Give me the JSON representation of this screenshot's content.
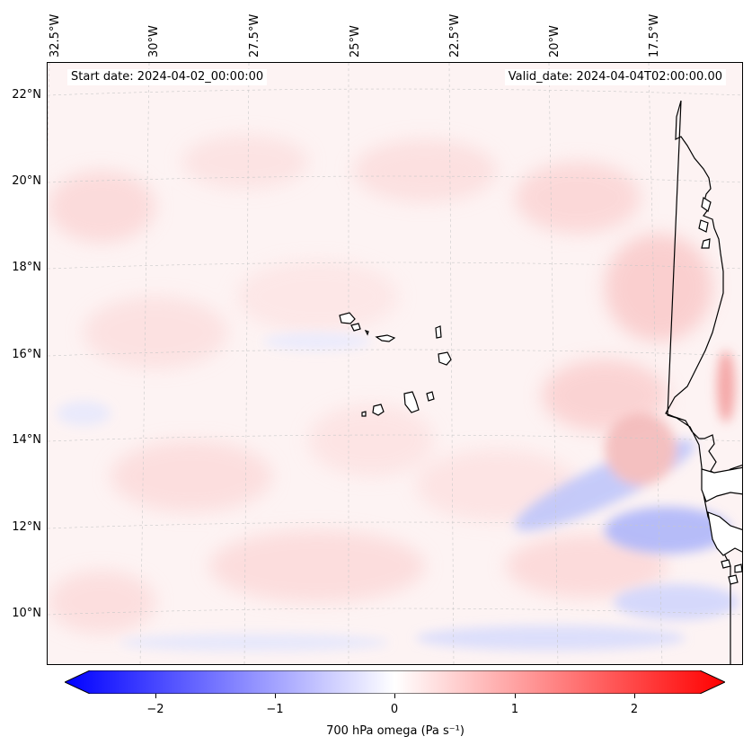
{
  "map": {
    "lat_labels": [
      "22°N",
      "20°N",
      "18°N",
      "16°N",
      "14°N",
      "12°N",
      "10°N"
    ],
    "lon_labels": [
      "32.5°W",
      "30°W",
      "27.5°W",
      "25°W",
      "22.5°W",
      "20°W",
      "17.5°W"
    ],
    "start_date": "Start date: 2024-04-02_00:00:00",
    "valid_date": "Valid_date: 2024-04-04T02:00:00.00",
    "extent": {
      "lon_min": -32.6,
      "lon_max": -14.8,
      "lat_min": 8.9,
      "lat_max": 22.7
    },
    "colors": {
      "coast": "#000000",
      "grid": "#c8c8c8",
      "land": "#ffffff"
    }
  },
  "colorbar": {
    "label": "700 hPa omega (Pa s⁻¹)",
    "ticks": [
      "−2",
      "−1",
      "0",
      "1",
      "2"
    ],
    "tick_values": [
      -2,
      -1,
      0,
      1,
      2
    ],
    "range": [
      -2.5,
      2.5
    ],
    "colors": {
      "min": "#0000ff",
      "mid": "#ffffff",
      "max": "#ff0000"
    }
  }
}
